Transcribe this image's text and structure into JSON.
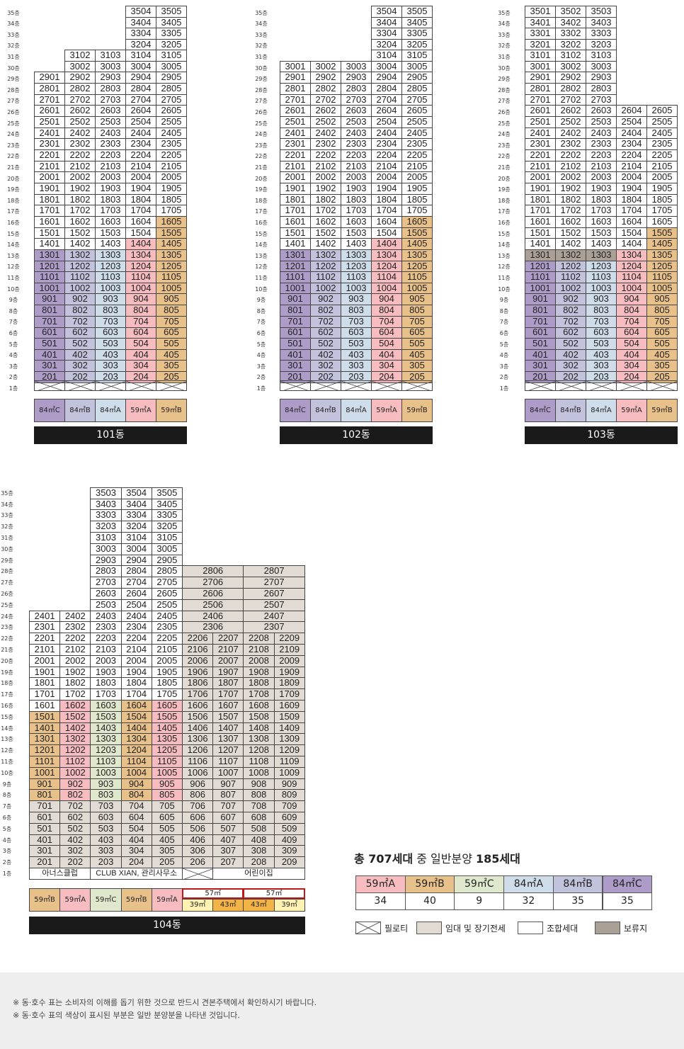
{
  "colors": {
    "84C": "#ad9cc8",
    "84B": "#c3c2dc",
    "84A": "#cfdcea",
    "59A": "#f6bcbf",
    "59B": "#e8c08a",
    "59C": "#dfe8cd",
    "rental": "#e2dbd4",
    "union": "#ffffff",
    "reserved": "#aaa095"
  },
  "buildings": [
    {
      "name": "101동",
      "legend": [
        {
          "label": "84㎡C",
          "type": "84C"
        },
        {
          "label": "84㎡B",
          "type": "84B"
        },
        {
          "label": "84㎡A",
          "type": "84A"
        },
        {
          "label": "59㎡A",
          "type": "59A"
        },
        {
          "label": "59㎡B",
          "type": "59B"
        }
      ]
    },
    {
      "name": "102동",
      "legend": [
        {
          "label": "84㎡C",
          "type": "84C"
        },
        {
          "label": "84㎡B",
          "type": "84B"
        },
        {
          "label": "84㎡A",
          "type": "84A"
        },
        {
          "label": "59㎡A",
          "type": "59A"
        },
        {
          "label": "59㎡B",
          "type": "59B"
        }
      ]
    },
    {
      "name": "103동",
      "legend": [
        {
          "label": "84㎡C",
          "type": "84C"
        },
        {
          "label": "84㎡B",
          "type": "84B"
        },
        {
          "label": "84㎡A",
          "type": "84A"
        },
        {
          "label": "59㎡A",
          "type": "59A"
        },
        {
          "label": "59㎡B",
          "type": "59B"
        }
      ]
    },
    {
      "name": "104동",
      "ground": [
        "아너스클럽",
        "CLUB XIAN, 관리사무소",
        "어린이집"
      ],
      "legend": [
        {
          "label": "59㎡B",
          "type": "59B"
        },
        {
          "label": "59㎡A",
          "type": "59A"
        },
        {
          "label": "59㎡C",
          "type": "59C"
        },
        {
          "label": "59㎡B",
          "type": "59B"
        },
        {
          "label": "59㎡A",
          "type": "59A"
        }
      ],
      "legend_small": [
        {
          "group": "57㎡",
          "items": [
            {
              "label": "39㎡",
              "color": "#fff2b3"
            },
            {
              "label": "43㎡",
              "color": "#f2b347"
            }
          ]
        },
        {
          "group": "57㎡",
          "items": [
            {
              "label": "43㎡",
              "color": "#f2b347"
            },
            {
              "label": "39㎡",
              "color": "#fff2b3"
            }
          ]
        }
      ]
    }
  ],
  "summary": {
    "title_prefix": "총 707세대",
    "title_mid": " 중 일반분양 ",
    "title_suffix": "185세대",
    "headers": [
      "59㎡A",
      "59㎡B",
      "59㎡C",
      "84㎡A",
      "84㎡B",
      "84㎡C"
    ],
    "values": [
      34,
      40,
      9,
      32,
      35,
      35
    ]
  },
  "key": [
    {
      "label": "필로티",
      "type": "pilotis"
    },
    {
      "label": "임대 및 장기전세",
      "type": "rental"
    },
    {
      "label": "조합세대",
      "type": "union"
    },
    {
      "label": "보류지",
      "type": "reserved"
    }
  ],
  "notes": [
    "※ 동·호수 표는 소비자의 이해를 돕기 위한 것으로 반드시 견본주택에서 확인하시기 바랍니다.",
    "※ 동·호수 표의 색상이 표시된 부분은 일반 분양분을 나타낸 것입니다."
  ]
}
